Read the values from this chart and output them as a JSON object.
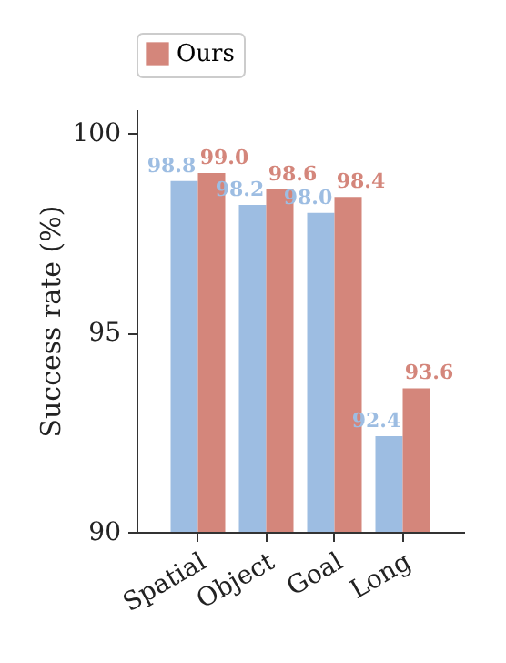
{
  "chart_data": {
    "type": "bar",
    "ylabel": "Success rate (%)",
    "categories": [
      "Spatial",
      "Object",
      "Goal",
      "Long"
    ],
    "series": [
      {
        "color": "#9dbde2",
        "values": [
          98.8,
          98.2,
          98.0,
          92.4
        ],
        "value_labels": [
          "98.8",
          "98.2",
          "98.0",
          "92.4"
        ]
      },
      {
        "name": "Ours",
        "color": "#d4867b",
        "values": [
          99.0,
          98.6,
          98.4,
          93.6
        ],
        "value_labels": [
          "99.0",
          "98.6",
          "98.4",
          "93.6"
        ]
      }
    ],
    "ylim": [
      90,
      100.6
    ],
    "yticks": [
      90,
      95,
      100
    ],
    "legend": "top",
    "grid": false
  }
}
